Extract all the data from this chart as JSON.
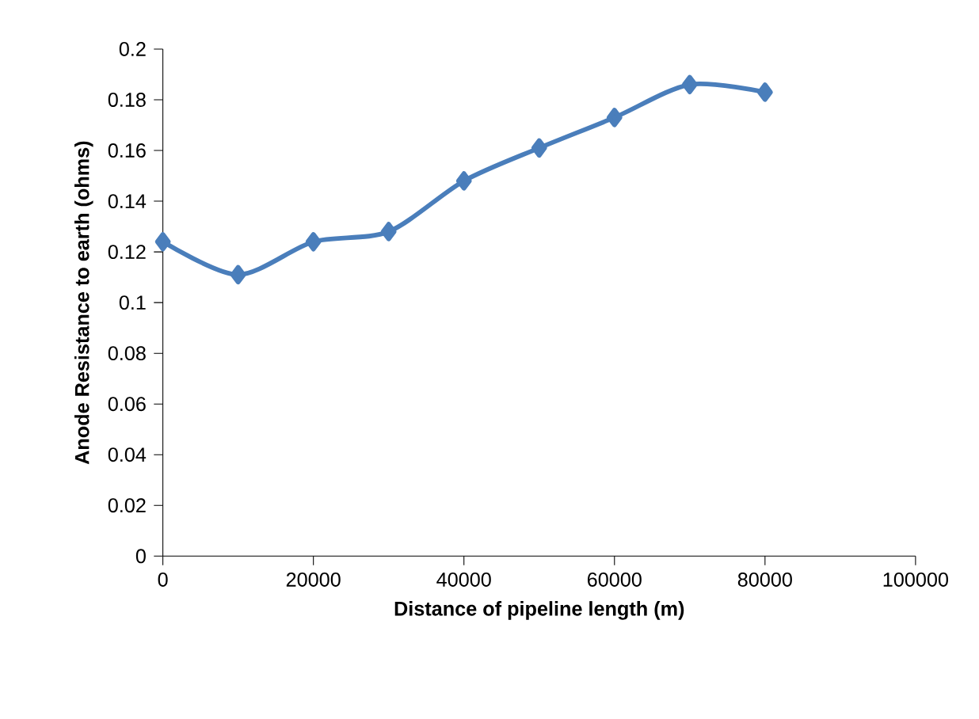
{
  "chart_data": {
    "type": "line",
    "xlabel": "Distance of pipeline length (m)",
    "ylabel": "Anode Resistance  to earth (ohms)",
    "x": [
      0,
      10000,
      20000,
      30000,
      40000,
      50000,
      60000,
      70000,
      80000
    ],
    "series": [
      {
        "color": "#4a7ebb",
        "values": [
          0.124,
          0.111,
          0.124,
          0.128,
          0.148,
          0.161,
          0.173,
          0.186,
          0.183
        ]
      }
    ],
    "xlim": [
      0,
      100000
    ],
    "xticks": [
      0,
      20000,
      40000,
      60000,
      80000,
      100000
    ],
    "ylim": [
      0,
      0.2
    ],
    "yticks": [
      0,
      0.02,
      0.04,
      0.06,
      0.08,
      0.1,
      0.12,
      0.14,
      0.16,
      0.18,
      0.2
    ],
    "marker": "diamond",
    "line_style": "solid"
  }
}
